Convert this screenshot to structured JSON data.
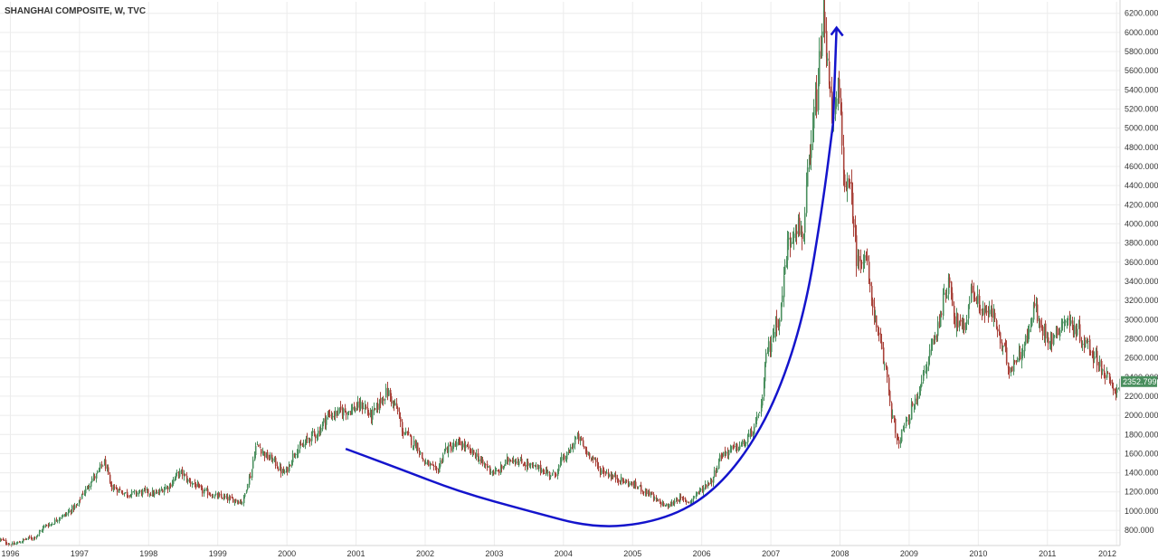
{
  "chart_data": {
    "type": "candlestick",
    "title": "SHANGHAI COMPOSITE, W, TVC",
    "xlabel": "",
    "ylabel": "",
    "x_tick_labels": [
      "1996",
      "1997",
      "1998",
      "1999",
      "2000",
      "2001",
      "2002",
      "2003",
      "2004",
      "2005",
      "2006",
      "2007",
      "2008",
      "2009",
      "2010",
      "2011",
      "2012"
    ],
    "y_tick_labels": [
      "800.000",
      "1000.000",
      "1200.000",
      "1400.000",
      "1600.000",
      "1800.000",
      "2000.000",
      "2200.000",
      "2400.000",
      "2600.000",
      "2800.000",
      "3000.000",
      "3200.000",
      "3400.000",
      "3600.000",
      "3800.000",
      "4000.000",
      "4200.000",
      "4400.000",
      "4600.000",
      "4800.000",
      "5000.000",
      "5200.000",
      "5400.000",
      "5600.000",
      "5800.000",
      "6000.000",
      "6200.000"
    ],
    "xlim": [
      1995.85,
      2012.05
    ],
    "ylim": [
      640,
      6320
    ],
    "grid": true,
    "up_color": "#4a8f5e",
    "down_color": "#a9423a",
    "annotation_color": "#1414cc",
    "last_price": "2352.799",
    "last_price_value": 2352.8,
    "last_price_color": "#4a8f5e",
    "series": [
      {
        "values": [
          [
            1995.85,
            700
          ],
          [
            1996.0,
            650
          ],
          [
            1996.3,
            720
          ],
          [
            1996.55,
            860
          ],
          [
            1996.75,
            950
          ],
          [
            1996.95,
            1050
          ],
          [
            1997.05,
            1200
          ],
          [
            1997.2,
            1350
          ],
          [
            1997.35,
            1500
          ],
          [
            1997.45,
            1250
          ],
          [
            1997.7,
            1180
          ],
          [
            1997.95,
            1200
          ],
          [
            1998.1,
            1180
          ],
          [
            1998.25,
            1250
          ],
          [
            1998.45,
            1400
          ],
          [
            1998.6,
            1300
          ],
          [
            1998.8,
            1200
          ],
          [
            1999.0,
            1150
          ],
          [
            1999.2,
            1120
          ],
          [
            1999.35,
            1100
          ],
          [
            1999.45,
            1350
          ],
          [
            1999.55,
            1680
          ],
          [
            1999.75,
            1550
          ],
          [
            1999.95,
            1400
          ],
          [
            2000.15,
            1650
          ],
          [
            2000.4,
            1800
          ],
          [
            2000.6,
            2000
          ],
          [
            2000.85,
            2050
          ],
          [
            2001.1,
            2100
          ],
          [
            2001.2,
            2000
          ],
          [
            2001.45,
            2240
          ],
          [
            2001.55,
            2100
          ],
          [
            2001.7,
            1800
          ],
          [
            2001.85,
            1700
          ],
          [
            2002.0,
            1500
          ],
          [
            2002.15,
            1420
          ],
          [
            2002.3,
            1650
          ],
          [
            2002.5,
            1700
          ],
          [
            2002.7,
            1600
          ],
          [
            2002.85,
            1480
          ],
          [
            2003.0,
            1400
          ],
          [
            2003.25,
            1550
          ],
          [
            2003.4,
            1500
          ],
          [
            2003.6,
            1450
          ],
          [
            2003.85,
            1380
          ],
          [
            2004.0,
            1550
          ],
          [
            2004.2,
            1760
          ],
          [
            2004.35,
            1600
          ],
          [
            2004.55,
            1420
          ],
          [
            2004.75,
            1350
          ],
          [
            2004.9,
            1300
          ],
          [
            2005.05,
            1260
          ],
          [
            2005.2,
            1200
          ],
          [
            2005.35,
            1100
          ],
          [
            2005.5,
            1050
          ],
          [
            2005.65,
            1130
          ],
          [
            2005.8,
            1100
          ],
          [
            2005.95,
            1200
          ],
          [
            2006.1,
            1300
          ],
          [
            2006.3,
            1600
          ],
          [
            2006.45,
            1650
          ],
          [
            2006.6,
            1700
          ],
          [
            2006.75,
            1850
          ],
          [
            2006.85,
            2100
          ],
          [
            2006.95,
            2700
          ],
          [
            2007.1,
            3000
          ],
          [
            2007.25,
            3800
          ],
          [
            2007.35,
            4000
          ],
          [
            2007.45,
            3900
          ],
          [
            2007.55,
            4600
          ],
          [
            2007.65,
            5300
          ],
          [
            2007.75,
            6100
          ],
          [
            2007.82,
            5600
          ],
          [
            2007.9,
            5000
          ],
          [
            2007.97,
            5400
          ],
          [
            2008.05,
            4500
          ],
          [
            2008.15,
            4300
          ],
          [
            2008.25,
            3600
          ],
          [
            2008.35,
            3700
          ],
          [
            2008.45,
            3200
          ],
          [
            2008.55,
            2800
          ],
          [
            2008.65,
            2500
          ],
          [
            2008.75,
            2000
          ],
          [
            2008.82,
            1700
          ],
          [
            2008.95,
            1900
          ],
          [
            2009.05,
            2100
          ],
          [
            2009.2,
            2400
          ],
          [
            2009.35,
            2800
          ],
          [
            2009.5,
            3200
          ],
          [
            2009.58,
            3450
          ],
          [
            2009.65,
            3000
          ],
          [
            2009.78,
            2900
          ],
          [
            2009.9,
            3300
          ],
          [
            2010.05,
            3100
          ],
          [
            2010.2,
            3050
          ],
          [
            2010.35,
            2700
          ],
          [
            2010.45,
            2500
          ],
          [
            2010.55,
            2600
          ],
          [
            2010.7,
            2800
          ],
          [
            2010.8,
            3150
          ],
          [
            2010.9,
            2900
          ],
          [
            2011.05,
            2800
          ],
          [
            2011.25,
            3000
          ],
          [
            2011.4,
            2900
          ],
          [
            2011.55,
            2750
          ],
          [
            2011.7,
            2600
          ],
          [
            2011.85,
            2400
          ],
          [
            2011.95,
            2250
          ],
          [
            2012.05,
            2352.8
          ]
        ]
      }
    ],
    "annotations": [
      {
        "type": "curve",
        "x": [
          2000.85,
          2001.6,
          2002.5,
          2003.5,
          2004.45,
          2005.3,
          2006.0,
          2006.6,
          2007.1,
          2007.5,
          2007.75,
          2007.9
        ],
        "y": [
          1650,
          1450,
          1200,
          1000,
          820,
          880,
          1100,
          1550,
          2200,
          3100,
          4200,
          5050
        ]
      },
      {
        "type": "arrow",
        "x": [
          2007.9,
          2007.95
        ],
        "y": [
          5050,
          6050
        ]
      }
    ]
  }
}
